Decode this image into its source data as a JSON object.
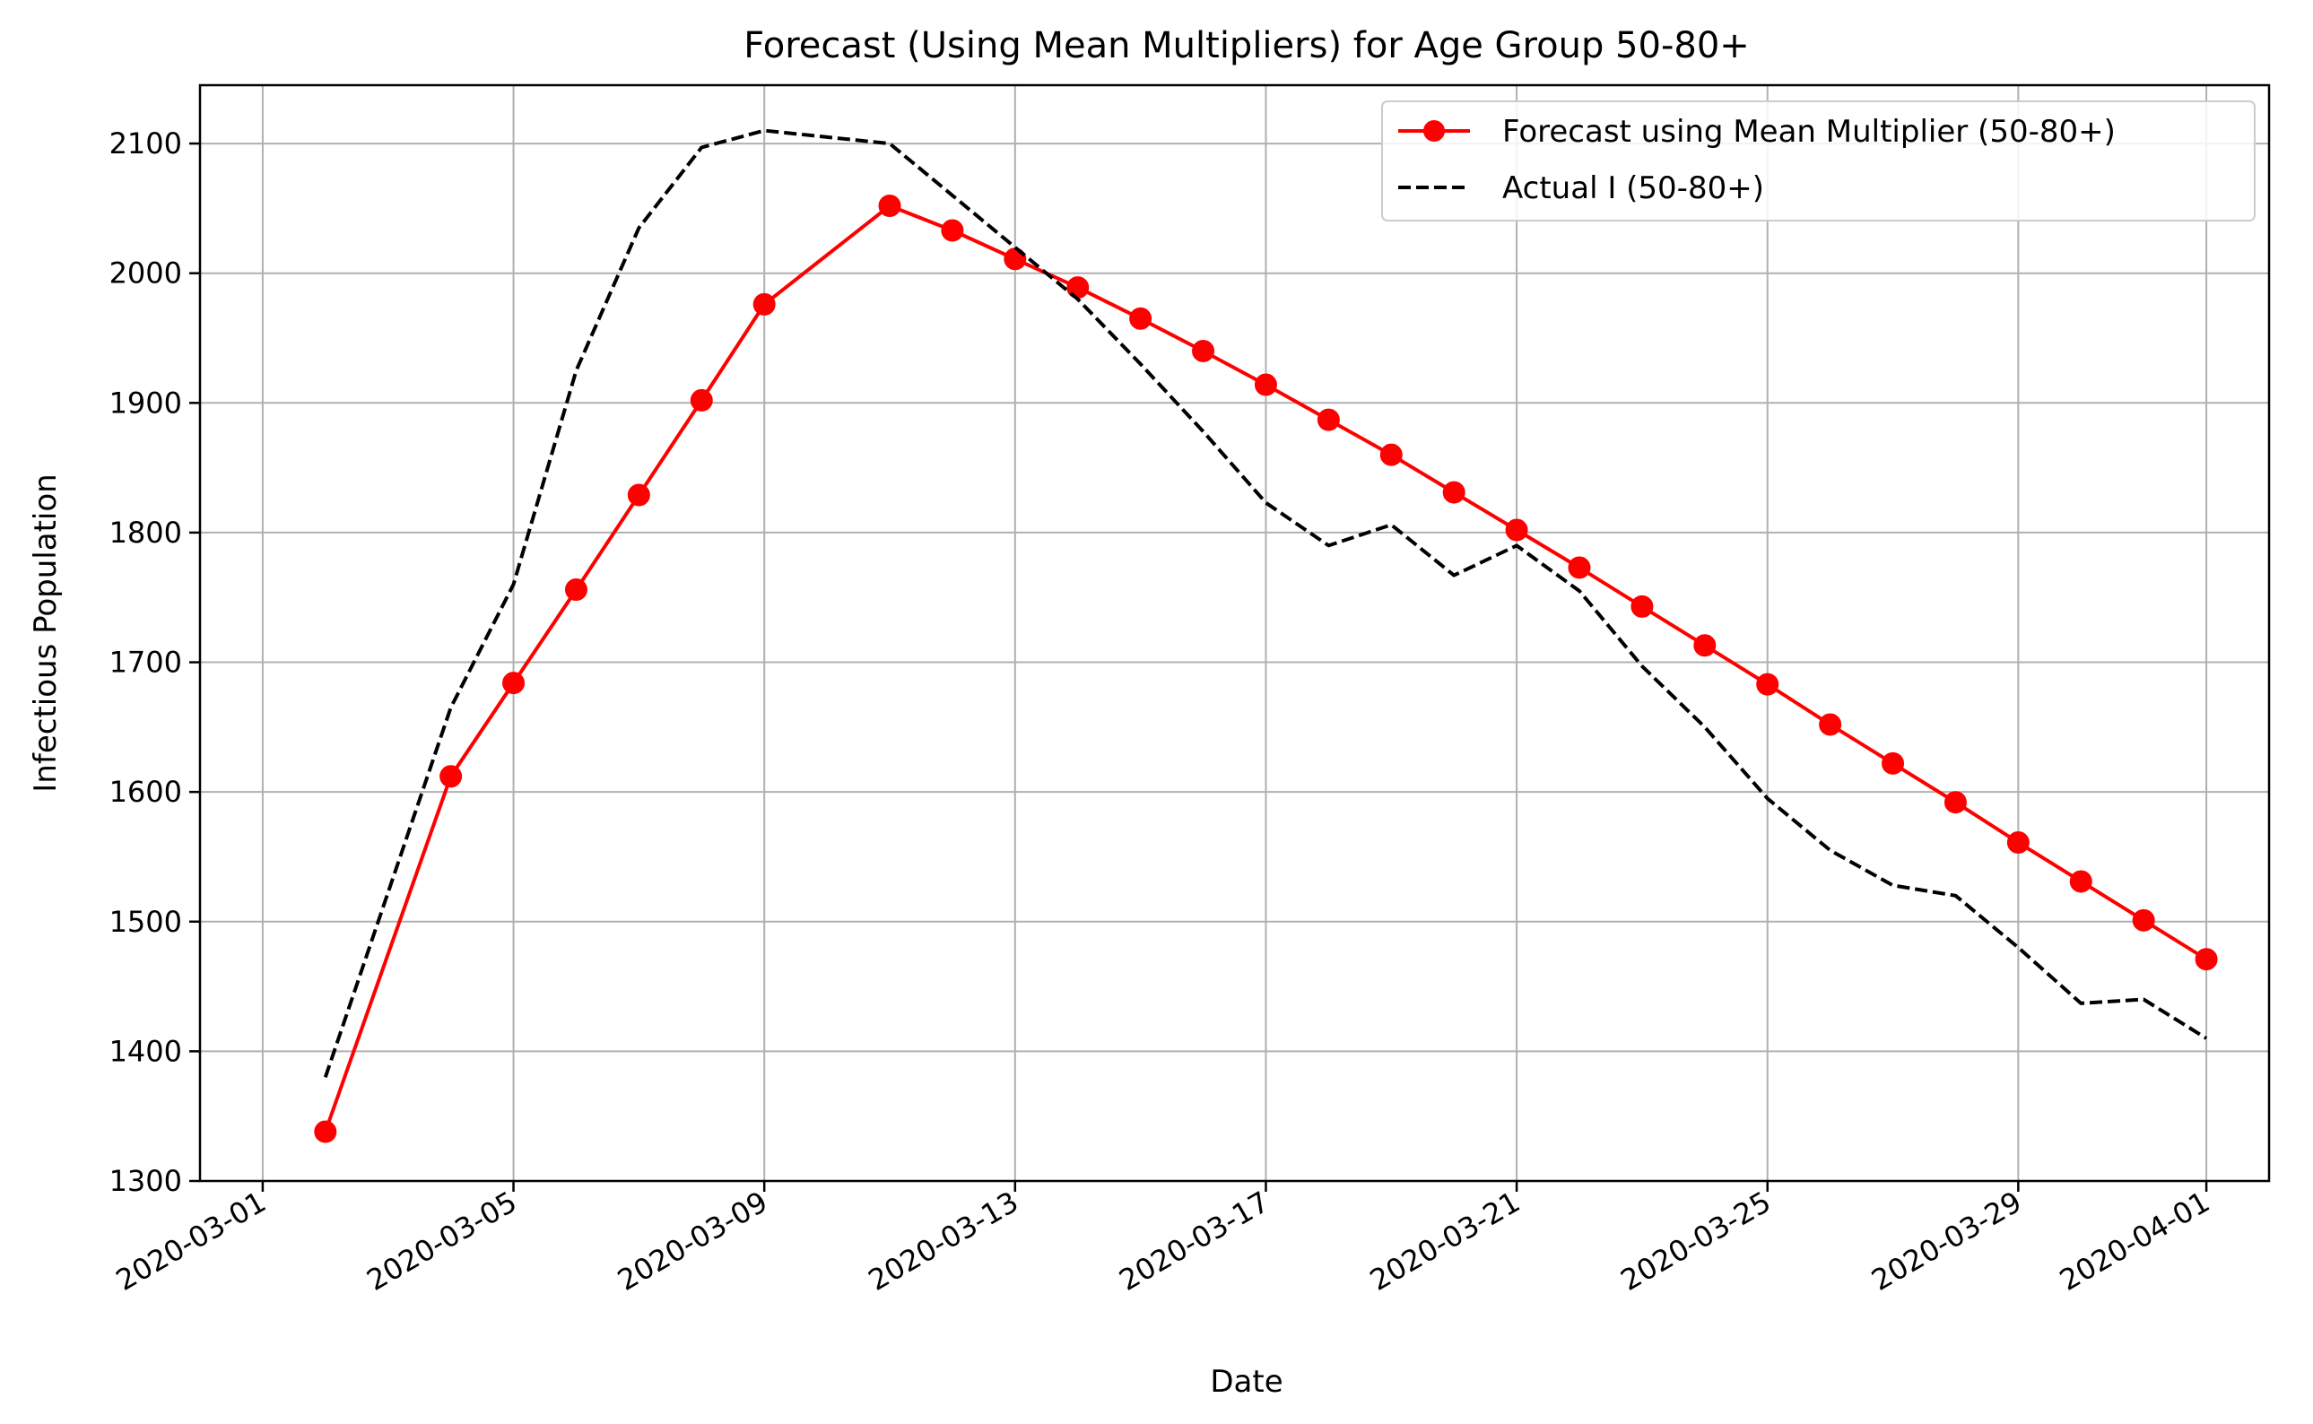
{
  "chart_data": {
    "type": "line",
    "title": "Forecast (Using Mean Multipliers) for Age Group 50-80+",
    "xlabel": "Date",
    "ylabel": "Infectious Population",
    "xlim": [
      "2020-02-29",
      "2020-04-02"
    ],
    "ylim": [
      1300,
      2145
    ],
    "x_ticks": [
      "2020-03-01",
      "2020-03-05",
      "2020-03-09",
      "2020-03-13",
      "2020-03-17",
      "2020-03-21",
      "2020-03-25",
      "2020-03-29",
      "2020-04-01"
    ],
    "y_ticks": [
      1300,
      1400,
      1500,
      1600,
      1700,
      1800,
      1900,
      2000,
      2100
    ],
    "grid": true,
    "legend_position": "top-right",
    "series": [
      {
        "name": "Forecast using Mean Multiplier (50-80+)",
        "color": "#ff0000",
        "style": "solid",
        "marker": "circle",
        "points": [
          {
            "x": "2020-03-02",
            "y": 1338
          },
          {
            "x": "2020-03-04",
            "y": 1612
          },
          {
            "x": "2020-03-05",
            "y": 1684
          },
          {
            "x": "2020-03-06",
            "y": 1756
          },
          {
            "x": "2020-03-07",
            "y": 1829
          },
          {
            "x": "2020-03-08",
            "y": 1902
          },
          {
            "x": "2020-03-09",
            "y": 1976
          },
          {
            "x": "2020-03-11",
            "y": 2052
          },
          {
            "x": "2020-03-12",
            "y": 2033
          },
          {
            "x": "2020-03-13",
            "y": 2011
          },
          {
            "x": "2020-03-14",
            "y": 1989
          },
          {
            "x": "2020-03-15",
            "y": 1965
          },
          {
            "x": "2020-03-16",
            "y": 1940
          },
          {
            "x": "2020-03-17",
            "y": 1914
          },
          {
            "x": "2020-03-18",
            "y": 1887
          },
          {
            "x": "2020-03-19",
            "y": 1860
          },
          {
            "x": "2020-03-20",
            "y": 1831
          },
          {
            "x": "2020-03-21",
            "y": 1802
          },
          {
            "x": "2020-03-22",
            "y": 1773
          },
          {
            "x": "2020-03-23",
            "y": 1743
          },
          {
            "x": "2020-03-24",
            "y": 1713
          },
          {
            "x": "2020-03-25",
            "y": 1683
          },
          {
            "x": "2020-03-26",
            "y": 1652
          },
          {
            "x": "2020-03-27",
            "y": 1622
          },
          {
            "x": "2020-03-28",
            "y": 1592
          },
          {
            "x": "2020-03-29",
            "y": 1561
          },
          {
            "x": "2020-03-30",
            "y": 1531
          },
          {
            "x": "2020-03-31",
            "y": 1501
          },
          {
            "x": "2020-04-01",
            "y": 1471
          }
        ]
      },
      {
        "name": "Actual I (50-80+)",
        "color": "#000000",
        "style": "dashed",
        "marker": "none",
        "points": [
          {
            "x": "2020-03-02",
            "y": 1380
          },
          {
            "x": "2020-03-04",
            "y": 1665
          },
          {
            "x": "2020-03-05",
            "y": 1760
          },
          {
            "x": "2020-03-06",
            "y": 1925
          },
          {
            "x": "2020-03-07",
            "y": 2035
          },
          {
            "x": "2020-03-08",
            "y": 2097
          },
          {
            "x": "2020-03-09",
            "y": 2110
          },
          {
            "x": "2020-03-11",
            "y": 2100
          },
          {
            "x": "2020-03-12",
            "y": 2060
          },
          {
            "x": "2020-03-13",
            "y": 2020
          },
          {
            "x": "2020-03-14",
            "y": 1980
          },
          {
            "x": "2020-03-15",
            "y": 1930
          },
          {
            "x": "2020-03-16",
            "y": 1878
          },
          {
            "x": "2020-03-17",
            "y": 1823
          },
          {
            "x": "2020-03-18",
            "y": 1790
          },
          {
            "x": "2020-03-19",
            "y": 1806
          },
          {
            "x": "2020-03-20",
            "y": 1767
          },
          {
            "x": "2020-03-21",
            "y": 1790
          },
          {
            "x": "2020-03-22",
            "y": 1755
          },
          {
            "x": "2020-03-23",
            "y": 1697
          },
          {
            "x": "2020-03-24",
            "y": 1650
          },
          {
            "x": "2020-03-25",
            "y": 1595
          },
          {
            "x": "2020-03-26",
            "y": 1555
          },
          {
            "x": "2020-03-27",
            "y": 1528
          },
          {
            "x": "2020-03-28",
            "y": 1520
          },
          {
            "x": "2020-03-29",
            "y": 1480
          },
          {
            "x": "2020-03-30",
            "y": 1437
          },
          {
            "x": "2020-03-31",
            "y": 1440
          },
          {
            "x": "2020-04-01",
            "y": 1410
          }
        ]
      }
    ]
  }
}
